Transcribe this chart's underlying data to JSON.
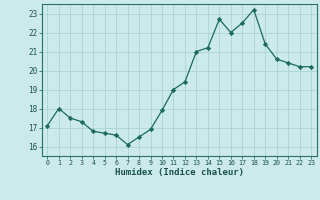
{
  "x": [
    0,
    1,
    2,
    3,
    4,
    5,
    6,
    7,
    8,
    9,
    10,
    11,
    12,
    13,
    14,
    15,
    16,
    17,
    18,
    19,
    20,
    21,
    22,
    23
  ],
  "y": [
    17.1,
    18.0,
    17.5,
    17.3,
    16.8,
    16.7,
    16.6,
    16.1,
    16.5,
    16.9,
    17.9,
    19.0,
    19.4,
    21.0,
    21.2,
    22.7,
    22.0,
    22.5,
    23.2,
    21.4,
    20.6,
    20.4,
    20.2,
    20.2
  ],
  "xlabel": "Humidex (Indice chaleur)",
  "ylim": [
    15.5,
    23.5
  ],
  "xlim": [
    -0.5,
    23.5
  ],
  "yticks": [
    16,
    17,
    18,
    19,
    20,
    21,
    22,
    23
  ],
  "xticks": [
    0,
    1,
    2,
    3,
    4,
    5,
    6,
    7,
    8,
    9,
    10,
    11,
    12,
    13,
    14,
    15,
    16,
    17,
    18,
    19,
    20,
    21,
    22,
    23
  ],
  "line_color": "#1a6b5a",
  "marker_color": "#1a6b5a",
  "bg_color": "#cceaea",
  "grid_color": "#aad4d4",
  "tick_color": "#1a5050",
  "label_color": "#1a5050",
  "spine_color": "#2a7070"
}
